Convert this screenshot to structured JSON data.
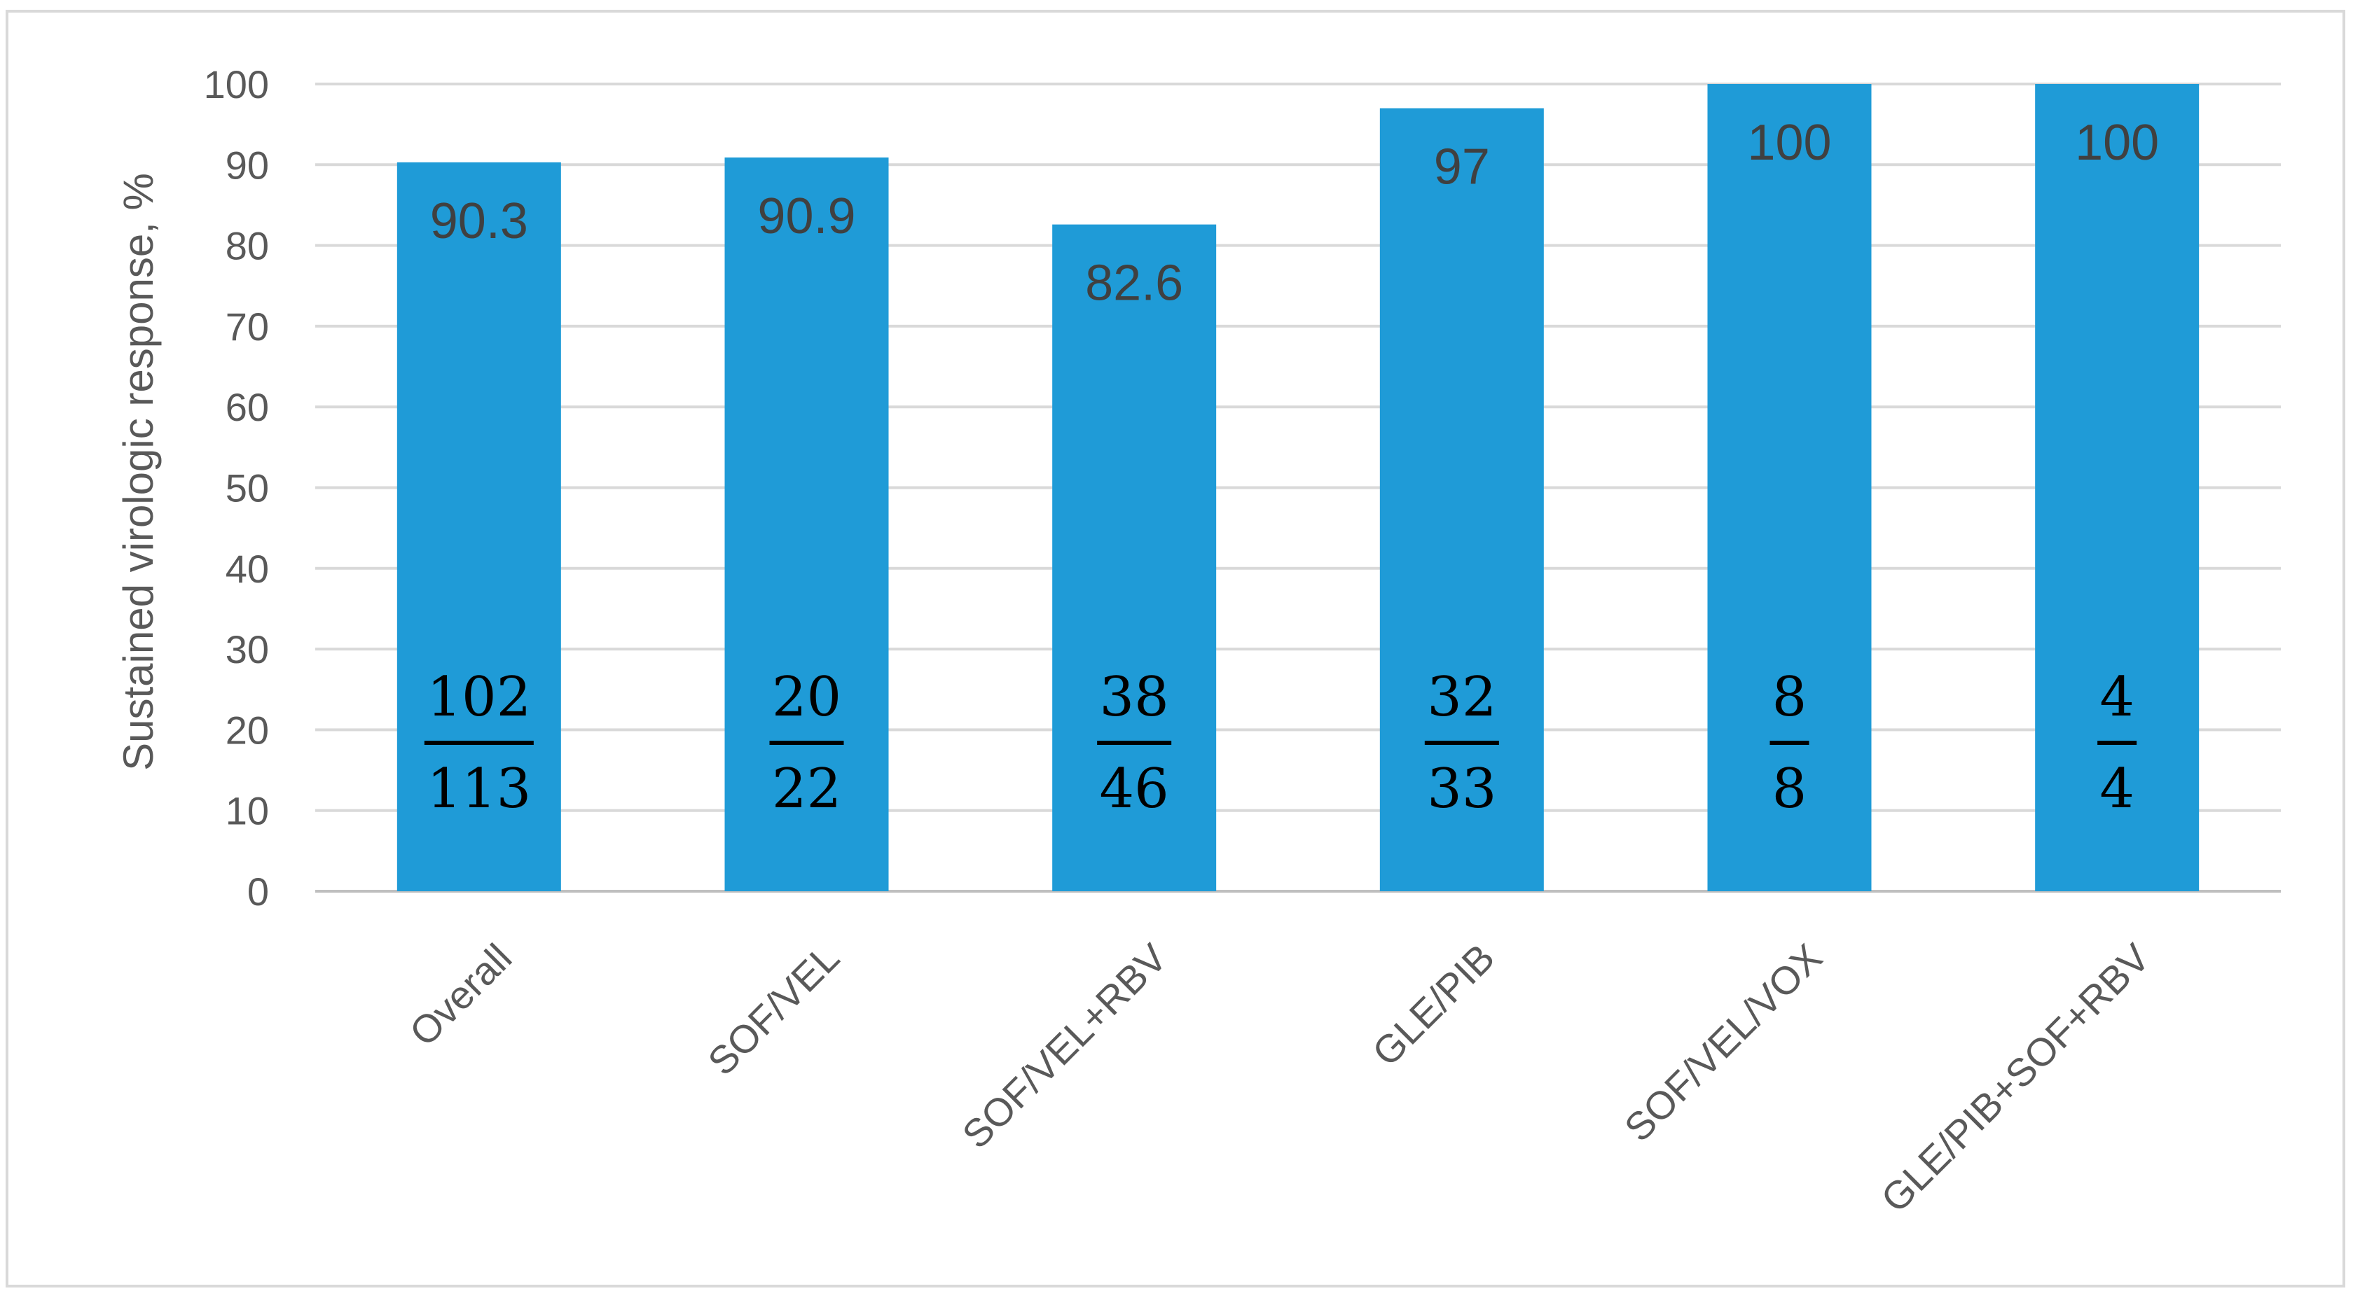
{
  "chart_data": {
    "type": "bar",
    "title": "",
    "xlabel": "",
    "ylabel": "Sustained virologic response, %",
    "ylim": [
      0,
      100
    ],
    "yticks": [
      0,
      10,
      20,
      30,
      40,
      50,
      60,
      70,
      80,
      90,
      100
    ],
    "grid": true,
    "legend": "none",
    "bar_color": "#1f9bd7",
    "categories": [
      "Overall",
      "SOF/VEL",
      "SOF/VEL+RBV",
      "GLE/PIB",
      "SOF/VEL/VOX",
      "GLE/PIB+SOF+RBV"
    ],
    "values": [
      90.3,
      90.9,
      82.6,
      97,
      100,
      100
    ],
    "value_labels": [
      "90.3",
      "90.9",
      "82.6",
      "97",
      "100",
      "100"
    ],
    "fractions": [
      {
        "numerator": "102",
        "denominator": "113"
      },
      {
        "numerator": "20",
        "denominator": "22"
      },
      {
        "numerator": "38",
        "denominator": "46"
      },
      {
        "numerator": "32",
        "denominator": "33"
      },
      {
        "numerator": "8",
        "denominator": "8"
      },
      {
        "numerator": "4",
        "denominator": "4"
      }
    ]
  }
}
